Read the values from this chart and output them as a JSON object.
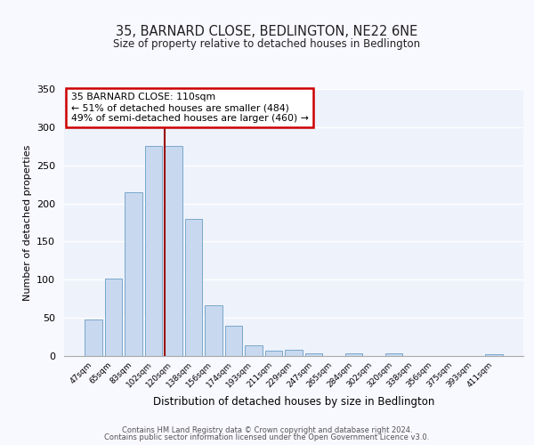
{
  "title": "35, BARNARD CLOSE, BEDLINGTON, NE22 6NE",
  "subtitle": "Size of property relative to detached houses in Bedlington",
  "xlabel": "Distribution of detached houses by size in Bedlington",
  "ylabel": "Number of detached properties",
  "categories": [
    "47sqm",
    "65sqm",
    "83sqm",
    "102sqm",
    "120sqm",
    "138sqm",
    "156sqm",
    "174sqm",
    "193sqm",
    "211sqm",
    "229sqm",
    "247sqm",
    "265sqm",
    "284sqm",
    "302sqm",
    "320sqm",
    "338sqm",
    "356sqm",
    "375sqm",
    "393sqm",
    "411sqm"
  ],
  "values": [
    48,
    102,
    215,
    275,
    275,
    180,
    67,
    40,
    14,
    7,
    8,
    3,
    0,
    3,
    0,
    4,
    0,
    0,
    0,
    0,
    2
  ],
  "bar_color": "#c8d8ee",
  "bar_edge_color": "#7aa8cc",
  "vline_x": 3.57,
  "vline_color": "#990000",
  "annotation_title": "35 BARNARD CLOSE: 110sqm",
  "annotation_line1": "← 51% of detached houses are smaller (484)",
  "annotation_line2": "49% of semi-detached houses are larger (460) →",
  "annotation_box_color": "#ffffff",
  "annotation_box_edge": "#cc0000",
  "ylim": [
    0,
    350
  ],
  "yticks": [
    0,
    50,
    100,
    150,
    200,
    250,
    300,
    350
  ],
  "background_color": "#eef2fb",
  "fig_background": "#f8f8ff",
  "footer1": "Contains HM Land Registry data © Crown copyright and database right 2024.",
  "footer2": "Contains public sector information licensed under the Open Government Licence v3.0."
}
